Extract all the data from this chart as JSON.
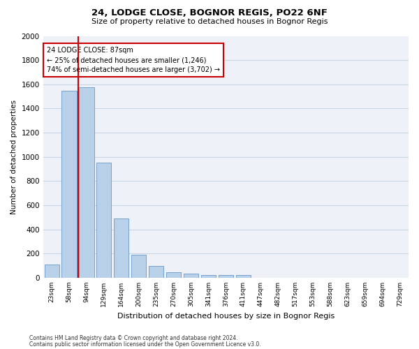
{
  "title1": "24, LODGE CLOSE, BOGNOR REGIS, PO22 6NF",
  "title2": "Size of property relative to detached houses in Bognor Regis",
  "xlabel": "Distribution of detached houses by size in Bognor Regis",
  "ylabel": "Number of detached properties",
  "categories": [
    "23sqm",
    "58sqm",
    "94sqm",
    "129sqm",
    "164sqm",
    "200sqm",
    "235sqm",
    "270sqm",
    "305sqm",
    "341sqm",
    "376sqm",
    "411sqm",
    "447sqm",
    "482sqm",
    "517sqm",
    "553sqm",
    "588sqm",
    "623sqm",
    "659sqm",
    "694sqm",
    "729sqm"
  ],
  "values": [
    110,
    1545,
    1575,
    950,
    490,
    190,
    100,
    45,
    35,
    25,
    20,
    20,
    0,
    0,
    0,
    0,
    0,
    0,
    0,
    0,
    0
  ],
  "bar_color": "#b8d0e8",
  "bar_edge_color": "#6699cc",
  "red_line_index": 1.5,
  "annotation_text": "24 LODGE CLOSE: 87sqm\n← 25% of detached houses are smaller (1,246)\n74% of semi-detached houses are larger (3,702) →",
  "annotation_box_color": "#ffffff",
  "annotation_box_edge": "#cc0000",
  "footer1": "Contains HM Land Registry data © Crown copyright and database right 2024.",
  "footer2": "Contains public sector information licensed under the Open Government Licence v3.0.",
  "ylim": [
    0,
    2000
  ],
  "yticks": [
    0,
    200,
    400,
    600,
    800,
    1000,
    1200,
    1400,
    1600,
    1800,
    2000
  ],
  "grid_color": "#c8d4e4",
  "bg_color": "#eef2f8",
  "red_line_color": "#cc0000"
}
